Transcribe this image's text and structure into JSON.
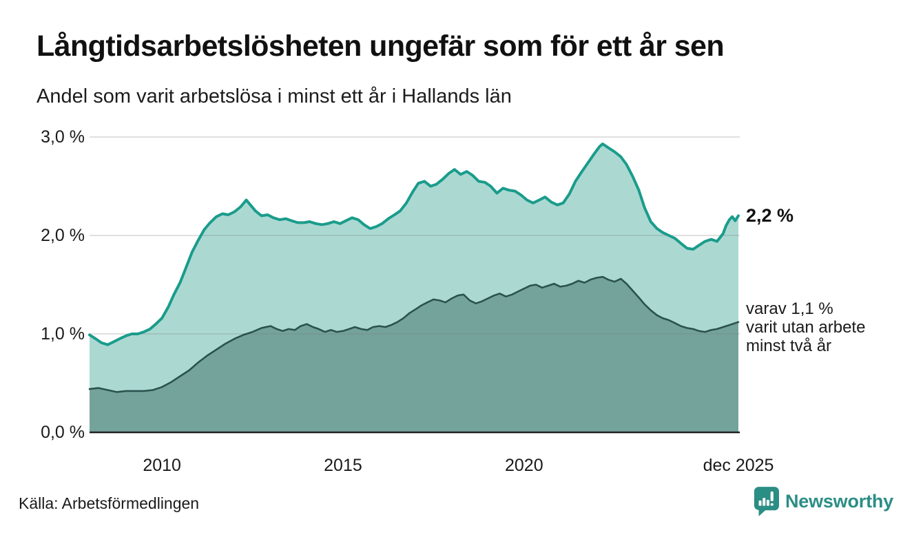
{
  "header": {
    "title": "Långtidsarbetslösheten ungefär som för ett år sen",
    "subtitle": "Andel som varit arbetslösa i minst ett år i Hallands län"
  },
  "footer": {
    "source": "Källa: Arbetsförmedlingen",
    "brand": "Newsworthy",
    "brand_icon": "newsworthy-speech-bubble-bar-chart-icon"
  },
  "colors": {
    "teal_line": "#1a9c8b",
    "teal_fill": "#abd9d2",
    "dark_line": "#2b524c",
    "dark_fill": "#74a39c",
    "grid": "#808080",
    "axis": "#222222",
    "text": "#1a1a1a",
    "brand_teal": "#2b8e85"
  },
  "chart_data": {
    "type": "area",
    "title": "Långtidsarbetslösheten ungefär som för ett år sen",
    "subtitle": "Andel som varit arbetslösa i minst ett år i Hallands län",
    "unit": "%",
    "grid": true,
    "legend_position": "right-annotations",
    "x_axis": {
      "range": [
        2008.0,
        2025.92
      ],
      "ticks": [
        {
          "label": "2010",
          "year": 2010.0
        },
        {
          "label": "2015",
          "year": 2015.0
        },
        {
          "label": "2020",
          "year": 2020.0
        },
        {
          "label": "dec 2025",
          "year": 2025.92
        }
      ]
    },
    "y_axis": {
      "range": [
        0.0,
        3.0
      ],
      "ticks": [
        {
          "label": "3,0 %",
          "value": 3.0
        },
        {
          "label": "2,0 %",
          "value": 2.0
        },
        {
          "label": "1,0 %",
          "value": 1.0
        },
        {
          "label": "0,0 %",
          "value": 0.0
        }
      ]
    },
    "annotations": {
      "primary": {
        "text": "2,2 %",
        "value": 2.2
      },
      "secondary": {
        "lines": [
          "varav 1,1 %",
          "varit utan arbete",
          "minst två år"
        ],
        "value": 1.1
      }
    },
    "series": [
      {
        "name": "Andel arbetslösa minst ett år",
        "end_value": 2.2,
        "points": [
          [
            2008.0,
            0.99
          ],
          [
            2008.17,
            0.95
          ],
          [
            2008.33,
            0.91
          ],
          [
            2008.5,
            0.89
          ],
          [
            2008.67,
            0.92
          ],
          [
            2008.83,
            0.95
          ],
          [
            2009.0,
            0.98
          ],
          [
            2009.17,
            1.0
          ],
          [
            2009.33,
            1.0
          ],
          [
            2009.5,
            1.02
          ],
          [
            2009.67,
            1.05
          ],
          [
            2009.83,
            1.1
          ],
          [
            2010.0,
            1.16
          ],
          [
            2010.17,
            1.27
          ],
          [
            2010.33,
            1.4
          ],
          [
            2010.5,
            1.52
          ],
          [
            2010.67,
            1.68
          ],
          [
            2010.83,
            1.83
          ],
          [
            2011.0,
            1.95
          ],
          [
            2011.17,
            2.06
          ],
          [
            2011.33,
            2.13
          ],
          [
            2011.5,
            2.19
          ],
          [
            2011.67,
            2.22
          ],
          [
            2011.83,
            2.21
          ],
          [
            2012.0,
            2.24
          ],
          [
            2012.17,
            2.29
          ],
          [
            2012.33,
            2.36
          ],
          [
            2012.42,
            2.32
          ],
          [
            2012.58,
            2.25
          ],
          [
            2012.75,
            2.2
          ],
          [
            2012.92,
            2.21
          ],
          [
            2013.08,
            2.18
          ],
          [
            2013.25,
            2.16
          ],
          [
            2013.42,
            2.17
          ],
          [
            2013.58,
            2.15
          ],
          [
            2013.75,
            2.13
          ],
          [
            2013.92,
            2.13
          ],
          [
            2014.08,
            2.14
          ],
          [
            2014.25,
            2.12
          ],
          [
            2014.42,
            2.11
          ],
          [
            2014.58,
            2.12
          ],
          [
            2014.75,
            2.14
          ],
          [
            2014.92,
            2.12
          ],
          [
            2015.08,
            2.15
          ],
          [
            2015.25,
            2.18
          ],
          [
            2015.42,
            2.16
          ],
          [
            2015.58,
            2.11
          ],
          [
            2015.75,
            2.07
          ],
          [
            2015.92,
            2.09
          ],
          [
            2016.08,
            2.12
          ],
          [
            2016.25,
            2.17
          ],
          [
            2016.42,
            2.21
          ],
          [
            2016.58,
            2.25
          ],
          [
            2016.75,
            2.33
          ],
          [
            2016.92,
            2.44
          ],
          [
            2017.08,
            2.53
          ],
          [
            2017.25,
            2.55
          ],
          [
            2017.42,
            2.5
          ],
          [
            2017.58,
            2.52
          ],
          [
            2017.75,
            2.57
          ],
          [
            2017.92,
            2.63
          ],
          [
            2018.08,
            2.67
          ],
          [
            2018.25,
            2.62
          ],
          [
            2018.42,
            2.65
          ],
          [
            2018.58,
            2.61
          ],
          [
            2018.75,
            2.55
          ],
          [
            2018.92,
            2.54
          ],
          [
            2019.08,
            2.5
          ],
          [
            2019.25,
            2.43
          ],
          [
            2019.42,
            2.48
          ],
          [
            2019.58,
            2.46
          ],
          [
            2019.75,
            2.45
          ],
          [
            2019.92,
            2.41
          ],
          [
            2020.08,
            2.36
          ],
          [
            2020.25,
            2.33
          ],
          [
            2020.42,
            2.36
          ],
          [
            2020.58,
            2.39
          ],
          [
            2020.75,
            2.34
          ],
          [
            2020.92,
            2.31
          ],
          [
            2021.08,
            2.33
          ],
          [
            2021.25,
            2.42
          ],
          [
            2021.42,
            2.55
          ],
          [
            2021.58,
            2.64
          ],
          [
            2021.75,
            2.73
          ],
          [
            2021.92,
            2.82
          ],
          [
            2022.08,
            2.9
          ],
          [
            2022.17,
            2.93
          ],
          [
            2022.33,
            2.89
          ],
          [
            2022.5,
            2.85
          ],
          [
            2022.67,
            2.8
          ],
          [
            2022.83,
            2.72
          ],
          [
            2023.0,
            2.6
          ],
          [
            2023.17,
            2.46
          ],
          [
            2023.33,
            2.28
          ],
          [
            2023.5,
            2.14
          ],
          [
            2023.67,
            2.07
          ],
          [
            2023.83,
            2.03
          ],
          [
            2024.0,
            2.0
          ],
          [
            2024.17,
            1.97
          ],
          [
            2024.33,
            1.92
          ],
          [
            2024.5,
            1.87
          ],
          [
            2024.67,
            1.86
          ],
          [
            2024.83,
            1.9
          ],
          [
            2025.0,
            1.94
          ],
          [
            2025.17,
            1.96
          ],
          [
            2025.33,
            1.94
          ],
          [
            2025.5,
            2.02
          ],
          [
            2025.58,
            2.1
          ],
          [
            2025.67,
            2.16
          ],
          [
            2025.75,
            2.19
          ],
          [
            2025.83,
            2.15
          ],
          [
            2025.92,
            2.2
          ]
        ]
      },
      {
        "name": "varav arbetslösa minst två år",
        "end_value": 1.1,
        "points": [
          [
            2008.0,
            0.44
          ],
          [
            2008.25,
            0.45
          ],
          [
            2008.5,
            0.43
          ],
          [
            2008.75,
            0.41
          ],
          [
            2009.0,
            0.42
          ],
          [
            2009.25,
            0.42
          ],
          [
            2009.5,
            0.42
          ],
          [
            2009.75,
            0.43
          ],
          [
            2010.0,
            0.46
          ],
          [
            2010.25,
            0.51
          ],
          [
            2010.5,
            0.57
          ],
          [
            2010.75,
            0.63
          ],
          [
            2011.0,
            0.71
          ],
          [
            2011.25,
            0.78
          ],
          [
            2011.5,
            0.84
          ],
          [
            2011.75,
            0.9
          ],
          [
            2012.0,
            0.95
          ],
          [
            2012.25,
            0.99
          ],
          [
            2012.5,
            1.02
          ],
          [
            2012.75,
            1.06
          ],
          [
            2013.0,
            1.08
          ],
          [
            2013.17,
            1.05
          ],
          [
            2013.33,
            1.03
          ],
          [
            2013.5,
            1.05
          ],
          [
            2013.67,
            1.04
          ],
          [
            2013.83,
            1.08
          ],
          [
            2014.0,
            1.1
          ],
          [
            2014.17,
            1.07
          ],
          [
            2014.33,
            1.05
          ],
          [
            2014.5,
            1.02
          ],
          [
            2014.67,
            1.04
          ],
          [
            2014.83,
            1.02
          ],
          [
            2015.0,
            1.03
          ],
          [
            2015.17,
            1.05
          ],
          [
            2015.33,
            1.07
          ],
          [
            2015.5,
            1.05
          ],
          [
            2015.67,
            1.04
          ],
          [
            2015.83,
            1.07
          ],
          [
            2016.0,
            1.08
          ],
          [
            2016.17,
            1.07
          ],
          [
            2016.33,
            1.09
          ],
          [
            2016.5,
            1.12
          ],
          [
            2016.67,
            1.16
          ],
          [
            2016.83,
            1.21
          ],
          [
            2017.0,
            1.25
          ],
          [
            2017.17,
            1.29
          ],
          [
            2017.33,
            1.32
          ],
          [
            2017.5,
            1.35
          ],
          [
            2017.67,
            1.34
          ],
          [
            2017.83,
            1.32
          ],
          [
            2018.0,
            1.36
          ],
          [
            2018.17,
            1.39
          ],
          [
            2018.33,
            1.4
          ],
          [
            2018.5,
            1.34
          ],
          [
            2018.67,
            1.31
          ],
          [
            2018.83,
            1.33
          ],
          [
            2019.0,
            1.36
          ],
          [
            2019.17,
            1.39
          ],
          [
            2019.33,
            1.41
          ],
          [
            2019.5,
            1.38
          ],
          [
            2019.67,
            1.4
          ],
          [
            2019.83,
            1.43
          ],
          [
            2020.0,
            1.46
          ],
          [
            2020.17,
            1.49
          ],
          [
            2020.33,
            1.5
          ],
          [
            2020.5,
            1.47
          ],
          [
            2020.67,
            1.49
          ],
          [
            2020.83,
            1.51
          ],
          [
            2021.0,
            1.48
          ],
          [
            2021.17,
            1.49
          ],
          [
            2021.33,
            1.51
          ],
          [
            2021.5,
            1.54
          ],
          [
            2021.67,
            1.52
          ],
          [
            2021.83,
            1.55
          ],
          [
            2022.0,
            1.57
          ],
          [
            2022.17,
            1.58
          ],
          [
            2022.33,
            1.55
          ],
          [
            2022.5,
            1.53
          ],
          [
            2022.67,
            1.56
          ],
          [
            2022.83,
            1.51
          ],
          [
            2023.0,
            1.44
          ],
          [
            2023.17,
            1.37
          ],
          [
            2023.33,
            1.3
          ],
          [
            2023.5,
            1.24
          ],
          [
            2023.67,
            1.19
          ],
          [
            2023.83,
            1.16
          ],
          [
            2024.0,
            1.14
          ],
          [
            2024.17,
            1.11
          ],
          [
            2024.33,
            1.08
          ],
          [
            2024.5,
            1.06
          ],
          [
            2024.67,
            1.05
          ],
          [
            2024.83,
            1.03
          ],
          [
            2025.0,
            1.02
          ],
          [
            2025.17,
            1.04
          ],
          [
            2025.33,
            1.05
          ],
          [
            2025.5,
            1.07
          ],
          [
            2025.67,
            1.09
          ],
          [
            2025.83,
            1.11
          ],
          [
            2025.92,
            1.12
          ]
        ]
      }
    ]
  }
}
